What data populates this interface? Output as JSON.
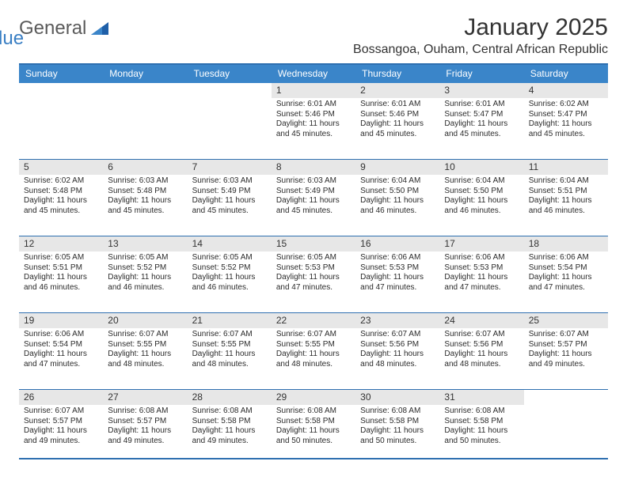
{
  "brand": {
    "part1": "General",
    "part2": "Blue"
  },
  "title": "January 2025",
  "location": "Bossangoa, Ouham, Central African Republic",
  "colors": {
    "header_bg": "#3a85c9",
    "rule": "#2e6fb0",
    "band": "#e7e7e7",
    "brand_accent": "#3a7fc4",
    "text": "#2b2b2b"
  },
  "day_names": [
    "Sunday",
    "Monday",
    "Tuesday",
    "Wednesday",
    "Thursday",
    "Friday",
    "Saturday"
  ],
  "layout": {
    "blank_leading": 3,
    "blank_trailing": 1
  },
  "days": [
    {
      "n": "1",
      "sr": "6:01 AM",
      "ss": "5:46 PM",
      "dl": "11 hours and 45 minutes."
    },
    {
      "n": "2",
      "sr": "6:01 AM",
      "ss": "5:46 PM",
      "dl": "11 hours and 45 minutes."
    },
    {
      "n": "3",
      "sr": "6:01 AM",
      "ss": "5:47 PM",
      "dl": "11 hours and 45 minutes."
    },
    {
      "n": "4",
      "sr": "6:02 AM",
      "ss": "5:47 PM",
      "dl": "11 hours and 45 minutes."
    },
    {
      "n": "5",
      "sr": "6:02 AM",
      "ss": "5:48 PM",
      "dl": "11 hours and 45 minutes."
    },
    {
      "n": "6",
      "sr": "6:03 AM",
      "ss": "5:48 PM",
      "dl": "11 hours and 45 minutes."
    },
    {
      "n": "7",
      "sr": "6:03 AM",
      "ss": "5:49 PM",
      "dl": "11 hours and 45 minutes."
    },
    {
      "n": "8",
      "sr": "6:03 AM",
      "ss": "5:49 PM",
      "dl": "11 hours and 45 minutes."
    },
    {
      "n": "9",
      "sr": "6:04 AM",
      "ss": "5:50 PM",
      "dl": "11 hours and 46 minutes."
    },
    {
      "n": "10",
      "sr": "6:04 AM",
      "ss": "5:50 PM",
      "dl": "11 hours and 46 minutes."
    },
    {
      "n": "11",
      "sr": "6:04 AM",
      "ss": "5:51 PM",
      "dl": "11 hours and 46 minutes."
    },
    {
      "n": "12",
      "sr": "6:05 AM",
      "ss": "5:51 PM",
      "dl": "11 hours and 46 minutes."
    },
    {
      "n": "13",
      "sr": "6:05 AM",
      "ss": "5:52 PM",
      "dl": "11 hours and 46 minutes."
    },
    {
      "n": "14",
      "sr": "6:05 AM",
      "ss": "5:52 PM",
      "dl": "11 hours and 46 minutes."
    },
    {
      "n": "15",
      "sr": "6:05 AM",
      "ss": "5:53 PM",
      "dl": "11 hours and 47 minutes."
    },
    {
      "n": "16",
      "sr": "6:06 AM",
      "ss": "5:53 PM",
      "dl": "11 hours and 47 minutes."
    },
    {
      "n": "17",
      "sr": "6:06 AM",
      "ss": "5:53 PM",
      "dl": "11 hours and 47 minutes."
    },
    {
      "n": "18",
      "sr": "6:06 AM",
      "ss": "5:54 PM",
      "dl": "11 hours and 47 minutes."
    },
    {
      "n": "19",
      "sr": "6:06 AM",
      "ss": "5:54 PM",
      "dl": "11 hours and 47 minutes."
    },
    {
      "n": "20",
      "sr": "6:07 AM",
      "ss": "5:55 PM",
      "dl": "11 hours and 48 minutes."
    },
    {
      "n": "21",
      "sr": "6:07 AM",
      "ss": "5:55 PM",
      "dl": "11 hours and 48 minutes."
    },
    {
      "n": "22",
      "sr": "6:07 AM",
      "ss": "5:55 PM",
      "dl": "11 hours and 48 minutes."
    },
    {
      "n": "23",
      "sr": "6:07 AM",
      "ss": "5:56 PM",
      "dl": "11 hours and 48 minutes."
    },
    {
      "n": "24",
      "sr": "6:07 AM",
      "ss": "5:56 PM",
      "dl": "11 hours and 48 minutes."
    },
    {
      "n": "25",
      "sr": "6:07 AM",
      "ss": "5:57 PM",
      "dl": "11 hours and 49 minutes."
    },
    {
      "n": "26",
      "sr": "6:07 AM",
      "ss": "5:57 PM",
      "dl": "11 hours and 49 minutes."
    },
    {
      "n": "27",
      "sr": "6:08 AM",
      "ss": "5:57 PM",
      "dl": "11 hours and 49 minutes."
    },
    {
      "n": "28",
      "sr": "6:08 AM",
      "ss": "5:58 PM",
      "dl": "11 hours and 49 minutes."
    },
    {
      "n": "29",
      "sr": "6:08 AM",
      "ss": "5:58 PM",
      "dl": "11 hours and 50 minutes."
    },
    {
      "n": "30",
      "sr": "6:08 AM",
      "ss": "5:58 PM",
      "dl": "11 hours and 50 minutes."
    },
    {
      "n": "31",
      "sr": "6:08 AM",
      "ss": "5:58 PM",
      "dl": "11 hours and 50 minutes."
    }
  ],
  "labels": {
    "sunrise": "Sunrise:",
    "sunset": "Sunset:",
    "daylight": "Daylight:"
  }
}
